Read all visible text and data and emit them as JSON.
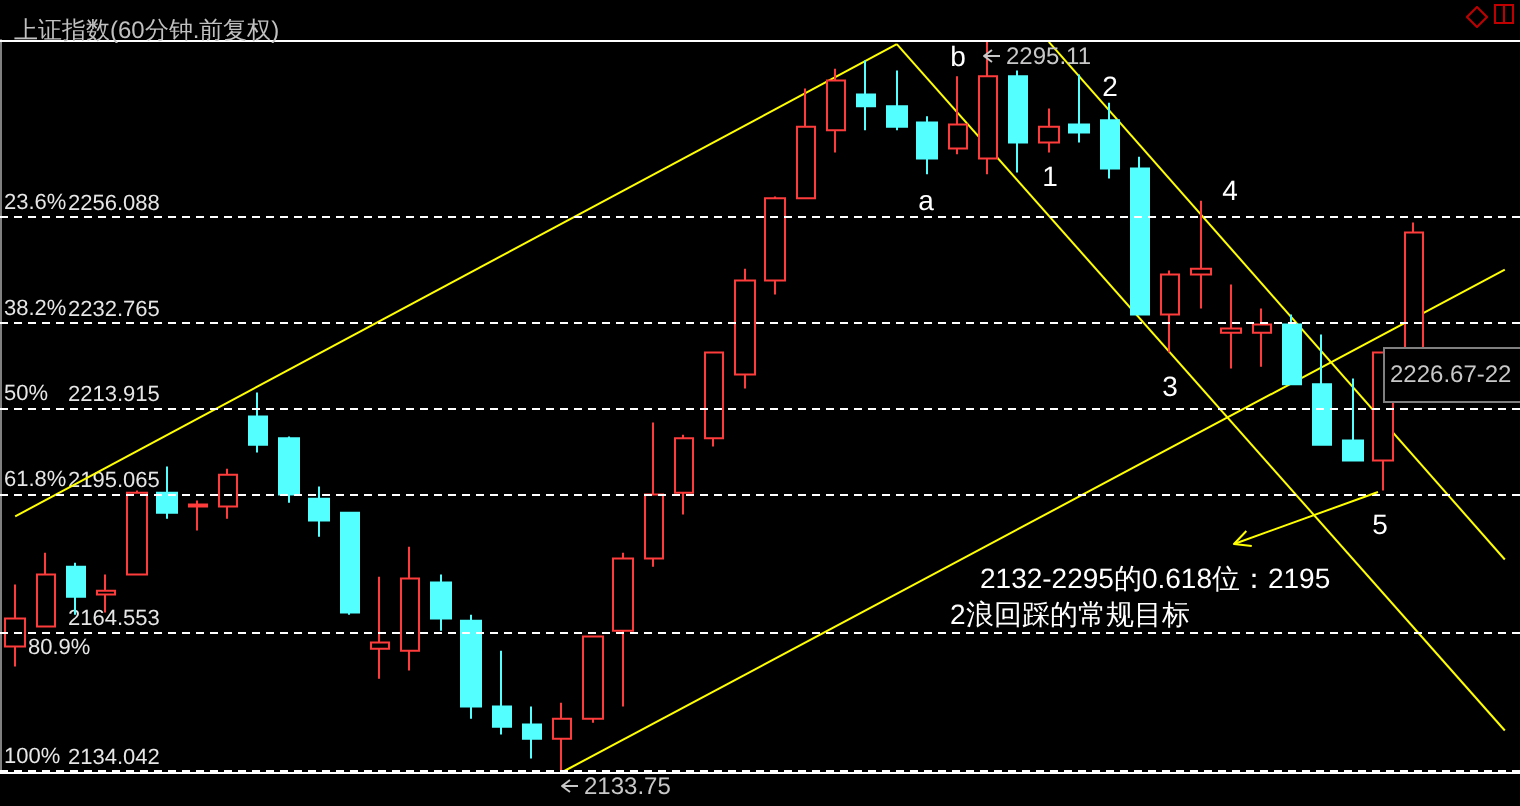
{
  "chart_data": {
    "type": "candlestick",
    "title": "上证指数(60分钟.前复权)",
    "tick_labels": "y",
    "grid": "y",
    "ylim": [
      2133.75,
      2295.11
    ],
    "yticks": [
      2256.088,
      2232.765,
      2213.915,
      2195.065,
      2164.553,
      2134.042
    ],
    "categories": [
      null,
      null,
      null,
      null,
      null,
      null,
      null,
      null,
      null,
      null,
      null,
      null,
      null,
      null,
      null,
      null,
      null,
      null,
      null,
      null,
      null,
      null,
      null,
      null,
      null,
      null,
      null,
      null,
      null,
      null,
      null,
      null,
      null,
      null,
      null,
      null,
      null,
      null,
      null,
      null,
      null,
      null,
      null,
      null,
      null,
      null,
      null,
      null,
      null,
      null
    ],
    "ohlc": [
      [
        2161.4,
        2175.1,
        2157.0,
        2167.6
      ],
      [
        2165.8,
        2182.1,
        2165.8,
        2177.3
      ],
      [
        2179.0,
        2179.9,
        2168.4,
        2172.4
      ],
      [
        2172.9,
        2177.3,
        2168.9,
        2173.7
      ],
      [
        2177.3,
        2195.8,
        2177.3,
        2195.3
      ],
      [
        2195.3,
        2201.1,
        2189.6,
        2190.9
      ],
      [
        2192.3,
        2193.6,
        2187.0,
        2192.7
      ],
      [
        2192.3,
        2200.6,
        2189.6,
        2199.3
      ],
      [
        2212.1,
        2217.4,
        2204.2,
        2205.9
      ],
      [
        2207.3,
        2207.7,
        2193.1,
        2194.9
      ],
      [
        2194.0,
        2196.7,
        2185.6,
        2189.2
      ],
      [
        2190.9,
        2190.9,
        2168.4,
        2168.9
      ],
      [
        2160.9,
        2176.8,
        2154.3,
        2162.3
      ],
      [
        2160.5,
        2183.4,
        2156.1,
        2176.4
      ],
      [
        2175.5,
        2177.3,
        2164.9,
        2167.6
      ],
      [
        2167.1,
        2168.4,
        2145.5,
        2148.2
      ],
      [
        2148.2,
        2160.5,
        2142.0,
        2143.7
      ],
      [
        2144.2,
        2148.2,
        2136.7,
        2141.1
      ],
      [
        2141.1,
        2149.0,
        2133.75,
        2145.5
      ],
      [
        2145.5,
        2163.6,
        2144.6,
        2163.6
      ],
      [
        2164.9,
        2182.1,
        2148.2,
        2180.8
      ],
      [
        2180.8,
        2210.8,
        2179.0,
        2194.9
      ],
      [
        2195.3,
        2208.1,
        2190.5,
        2207.3
      ],
      [
        2207.3,
        2226.2,
        2205.5,
        2226.2
      ],
      [
        2221.4,
        2244.7,
        2218.3,
        2242.1
      ],
      [
        2242.1,
        2260.6,
        2239.0,
        2260.2
      ],
      [
        2260.2,
        2284.4,
        2260.2,
        2276.0
      ],
      [
        2275.2,
        2288.8,
        2270.3,
        2286.2
      ],
      [
        2283.1,
        2290.6,
        2275.2,
        2280.5
      ],
      [
        2280.5,
        2288.4,
        2275.2,
        2276.0
      ],
      [
        2276.9,
        2278.3,
        2265.5,
        2269.0
      ],
      [
        2271.2,
        2287.1,
        2269.9,
        2276.5
      ],
      [
        2269.0,
        2295.11,
        2265.5,
        2287.1
      ],
      [
        2287.1,
        2288.4,
        2265.9,
        2272.5
      ],
      [
        2272.5,
        2280.0,
        2270.3,
        2276.0
      ],
      [
        2276.5,
        2287.5,
        2272.5,
        2274.7
      ],
      [
        2277.4,
        2281.3,
        2264.6,
        2266.8
      ],
      [
        2266.8,
        2269.4,
        2234.6,
        2234.6
      ],
      [
        2234.6,
        2244.3,
        2226.2,
        2243.4
      ],
      [
        2243.4,
        2259.7,
        2235.9,
        2244.7
      ],
      [
        2230.6,
        2241.2,
        2222.7,
        2231.5
      ],
      [
        2230.6,
        2235.9,
        2223.1,
        2232.4
      ],
      [
        2232.4,
        2234.6,
        2219.2,
        2219.2
      ],
      [
        2219.2,
        2230.2,
        2205.9,
        2205.9
      ],
      [
        2206.8,
        2220.5,
        2202.4,
        2202.4
      ],
      [
        2202.4,
        2226.2,
        2195.8,
        2226.2
      ],
      [
        2227.1,
        2254.9,
        2227.1,
        2252.7
      ],
      null,
      null,
      null
    ],
    "colors": [
      "#ff3c3c",
      "#ff3c3c",
      "#54ffff",
      "#ff3c3c",
      "#ff3c3c",
      "#54ffff",
      "#ff3c3c",
      "#ff3c3c",
      "#54ffff",
      "#54ffff",
      "#54ffff",
      "#54ffff",
      "#ff3c3c",
      "#ff3c3c",
      "#54ffff",
      "#54ffff",
      "#54ffff",
      "#54ffff",
      "#ff3c3c",
      "#ff3c3c",
      "#ff3c3c",
      "#ff3c3c",
      "#ff3c3c",
      "#ff3c3c",
      "#ff3c3c",
      "#ff3c3c",
      "#ff3c3c",
      "#ff3c3c",
      "#54ffff",
      "#54ffff",
      "#54ffff",
      "#ff3c3c",
      "#ff3c3c",
      "#54ffff",
      "#ff3c3c",
      "#54ffff",
      "#54ffff",
      "#54ffff",
      "#ff3c3c",
      "#ff3c3c",
      "#ff3c3c",
      "#ff3c3c",
      "#54ffff",
      "#54ffff",
      "#54ffff",
      "#ff3c3c",
      "#ff3c3c",
      null,
      null,
      null
    ],
    "series": [
      {
        "type": "line",
        "color": "#ffff00",
        "values": [
          2190.1,
          null,
          null,
          null,
          null,
          null,
          null,
          null,
          null,
          null,
          null,
          null,
          null,
          null,
          null,
          null,
          null,
          null,
          null,
          null,
          null,
          null,
          null,
          null,
          null,
          null,
          null,
          null,
          null,
          2294.2,
          null,
          null,
          null,
          null,
          null,
          null,
          null,
          null,
          null,
          null,
          null,
          null,
          null,
          null,
          null,
          null,
          null,
          null,
          null,
          null
        ]
      },
      {
        "type": "line",
        "color": "#ffff00",
        "values": [
          null,
          null,
          null,
          null,
          null,
          null,
          null,
          null,
          null,
          null,
          null,
          null,
          null,
          null,
          null,
          null,
          null,
          null,
          2133.75,
          null,
          null,
          null,
          null,
          null,
          null,
          null,
          null,
          null,
          null,
          null,
          null,
          null,
          null,
          null,
          null,
          null,
          null,
          null,
          null,
          null,
          null,
          null,
          null,
          null,
          null,
          null,
          null,
          null,
          null,
          2244.5
        ]
      },
      {
        "type": "line",
        "color": "#ffff00",
        "values": [
          null,
          null,
          null,
          null,
          null,
          null,
          null,
          null,
          null,
          null,
          null,
          null,
          null,
          null,
          null,
          null,
          null,
          null,
          null,
          null,
          null,
          null,
          null,
          null,
          null,
          null,
          null,
          null,
          null,
          2294.2,
          null,
          null,
          null,
          null,
          null,
          null,
          null,
          null,
          null,
          null,
          null,
          null,
          null,
          null,
          null,
          null,
          null,
          null,
          null,
          2142.9
        ]
      },
      {
        "type": "line",
        "color": "#ffff00",
        "values": [
          null,
          null,
          null,
          null,
          null,
          null,
          null,
          null,
          null,
          null,
          null,
          null,
          null,
          null,
          null,
          null,
          null,
          null,
          null,
          null,
          null,
          null,
          null,
          null,
          null,
          null,
          null,
          null,
          null,
          null,
          null,
          null,
          null,
          null,
          2294.7,
          null,
          null,
          null,
          null,
          null,
          null,
          null,
          null,
          null,
          null,
          null,
          null,
          null,
          null,
          2180.6
        ]
      }
    ],
    "ref_lines": [
      {
        "axis": "y",
        "value": 2295.11,
        "color": "#ffffff",
        "line_style": "solid"
      },
      {
        "axis": "y",
        "value": 2133.75,
        "color": "#ffffff",
        "line_style": "solid"
      }
    ],
    "annotations": [
      {
        "text": "2295.11",
        "y": 2295.11
      },
      {
        "text": "2133.75",
        "y": 2133.75
      },
      "a",
      "b",
      "1",
      "2",
      "3",
      "4",
      "5",
      "2226.67-22",
      "2132-2295的0.618位：2195",
      "2浪回踩的常规目标",
      "23.6%",
      "38.2%",
      "50%",
      "61.8%",
      "80.9%",
      "100%"
    ]
  }
}
